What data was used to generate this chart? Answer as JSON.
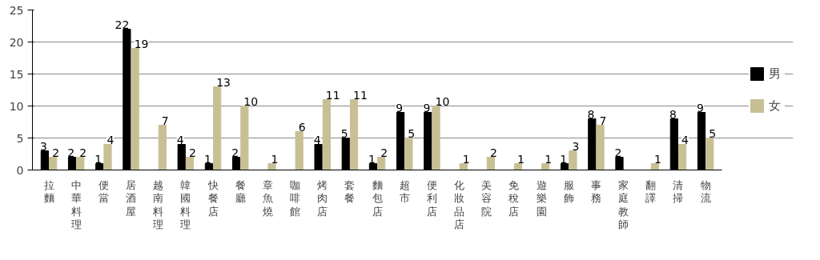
{
  "chart_data": {
    "type": "bar",
    "categories": [
      "拉麵",
      "中華料理",
      "便當",
      "居酒屋",
      "越南料理",
      "韓國料理",
      "快餐店",
      "餐廳",
      "章魚燒",
      "咖啡館",
      "烤肉店",
      "套餐",
      "麵包店",
      "超市",
      "便利店",
      "化妝品店",
      "美容院",
      "免稅店",
      "遊樂園",
      "服飾",
      "事務",
      "家庭教師",
      "翻譯",
      "清掃",
      "物流"
    ],
    "series": [
      {
        "name": "男",
        "color": "#000000",
        "values": [
          3,
          2,
          1,
          22,
          null,
          4,
          1,
          2,
          null,
          null,
          4,
          5,
          1,
          9,
          9,
          null,
          null,
          null,
          null,
          1,
          8,
          2,
          null,
          8,
          9
        ]
      },
      {
        "name": "女",
        "color": "#c8bf95",
        "values": [
          2,
          2,
          4,
          19,
          7,
          2,
          13,
          10,
          1,
          6,
          11,
          11,
          2,
          5,
          10,
          1,
          2,
          1,
          1,
          3,
          7,
          null,
          1,
          4,
          5
        ]
      }
    ],
    "ylim": [
      0,
      25
    ],
    "yticks": [
      0,
      5,
      10,
      15,
      20,
      25
    ],
    "grid": "y",
    "legend": "right",
    "data_labels": true
  }
}
